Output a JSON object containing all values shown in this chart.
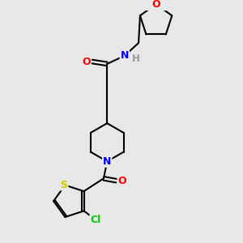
{
  "bg_color": "#e8e8e8",
  "atom_colors": {
    "C": "#000000",
    "N": "#0000ff",
    "O": "#ff0000",
    "S": "#cccc00",
    "Cl": "#00cc00",
    "H": "#999999"
  },
  "figsize": [
    3.0,
    3.0
  ],
  "dpi": 100
}
